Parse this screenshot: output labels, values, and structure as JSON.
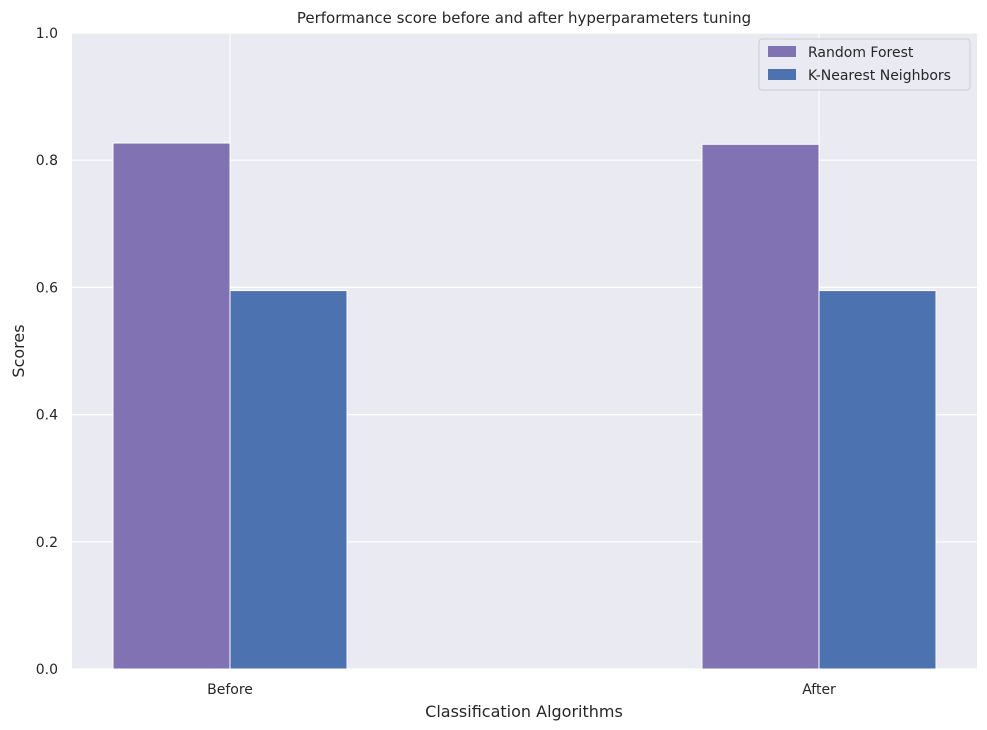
{
  "chart_data": {
    "type": "bar",
    "title": "Performance score before and after hyperparameters tuning",
    "xlabel": "Classification Algorithms",
    "ylabel": "Scores",
    "categories": [
      "Before",
      "After"
    ],
    "series": [
      {
        "name": "Random Forest",
        "values": [
          0.827,
          0.825
        ],
        "color": "#8172b3"
      },
      {
        "name": "K-Nearest Neighbors",
        "values": [
          0.595,
          0.595
        ],
        "color": "#4c72b0"
      }
    ],
    "ylim": [
      0,
      1.0
    ],
    "yticks": [
      "0.0",
      "0.2",
      "0.4",
      "0.6",
      "0.8",
      "1.0"
    ],
    "grid": true,
    "legend_position": "top-right",
    "background": "#eaeaf2"
  }
}
